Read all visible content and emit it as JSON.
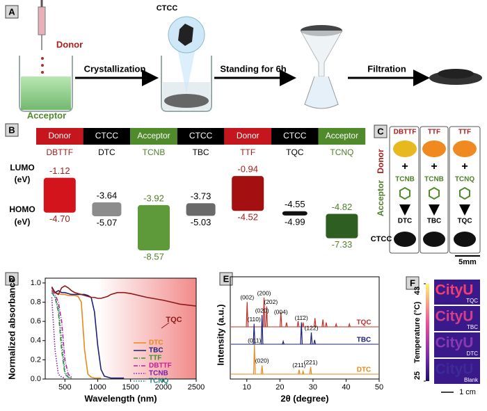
{
  "panel_a": {
    "label": "A",
    "donor": "Donor",
    "acceptor": "Acceptor",
    "product": "CTCC",
    "steps": [
      "Crystallization",
      "Standing for 6h",
      "Filtration"
    ]
  },
  "panel_b": {
    "label": "B",
    "roles": [
      "Donor",
      "CTCC",
      "Acceptor",
      "CTCC",
      "Donor",
      "CTCC",
      "Acceptor"
    ],
    "header_colors": [
      "#c4161c",
      "#000000",
      "#4f8a2b",
      "#000000",
      "#c4161c",
      "#000000",
      "#4f8a2b"
    ],
    "compounds": [
      "DBTTF",
      "DTC",
      "TCNB",
      "TBC",
      "TTF",
      "TQC",
      "TCNQ"
    ],
    "label_colors": [
      "#a61b1b",
      "#000000",
      "#4f7f2a",
      "#000000",
      "#a61b1b",
      "#000000",
      "#4f7f2a"
    ],
    "colors": [
      "#d3141c",
      "#8c8c8c",
      "#5f9a3a",
      "#6a6a6a",
      "#a3100f",
      "#111111",
      "#2f5e22"
    ],
    "lumo_axis": "LUMO",
    "homo_axis": "HOMO",
    "unit": "(eV)",
    "lumo": {
      "values": [
        -1.12,
        -3.64,
        -3.92,
        -3.73,
        -0.94,
        -4.55,
        -4.82
      ],
      "value_labels": [
        "-1.12",
        "-3.64",
        "-3.92",
        "-3.73",
        "-0.94",
        "-4.55",
        "-4.82"
      ]
    },
    "homo": {
      "values": [
        -4.7,
        -5.07,
        -8.57,
        -5.03,
        -4.52,
        -4.99,
        -7.33
      ],
      "value_labels": [
        "-4.70",
        "-5.07",
        "-8.57",
        "-5.03",
        "-4.52",
        "-4.99",
        "-7.33"
      ]
    }
  },
  "panel_c": {
    "label": "C",
    "rows": [
      "Donor",
      "Acceptor",
      "CTCC"
    ],
    "donors": [
      "DBTTF",
      "TTF",
      "TTF"
    ],
    "acceptors": [
      "TCNB",
      "TCNB",
      "TCNQ"
    ],
    "products": [
      "DTC",
      "TBC",
      "TQC"
    ],
    "scale": "5mm"
  },
  "chart_data": [
    {
      "label": "D",
      "type": "line",
      "xlabel": "Wavelength (nm)",
      "ylabel": "Normalized absorbance",
      "x": [
        300,
        350,
        400,
        450,
        500,
        550,
        600,
        650,
        700,
        750,
        800,
        850,
        900,
        950,
        1000,
        1050,
        1100,
        1150,
        1200,
        1300,
        1400,
        1500,
        1750,
        2000,
        2250,
        2500
      ],
      "xlim": [
        200,
        2500
      ],
      "xticks": [
        500,
        1000,
        1500,
        2000,
        2500
      ],
      "ylim": [
        0,
        1.05
      ],
      "yticks": [
        {
          "value": 0,
          "label": "0.0"
        },
        {
          "value": 0.2,
          "label": "0.2"
        },
        {
          "value": 0.4,
          "label": "0.4"
        },
        {
          "value": 0.6,
          "label": "0.6"
        },
        {
          "value": 0.8,
          "label": "0.8"
        },
        {
          "value": 1,
          "label": "1.0"
        }
      ],
      "series": [
        {
          "name": "DTC",
          "color": "#e8891a",
          "dash": "solid",
          "values": [
            0.93,
            0.9,
            0.89,
            0.88,
            0.88,
            0.87,
            0.87,
            0.87,
            0.86,
            0.8,
            0.3,
            0.05,
            0.02,
            0.01,
            0.01,
            0.01,
            null,
            null,
            null,
            null,
            null,
            null,
            null,
            null,
            null,
            null
          ]
        },
        {
          "name": "TBC",
          "color": "#1c1f7a",
          "dash": "solid",
          "values": [
            0.95,
            0.9,
            0.92,
            0.9,
            0.9,
            0.89,
            0.88,
            0.88,
            0.88,
            0.88,
            0.88,
            0.87,
            0.85,
            0.7,
            0.35,
            0.1,
            0.03,
            0.02,
            0.01,
            0.01,
            0.01,
            null,
            null,
            null,
            null,
            null
          ]
        },
        {
          "name": "TTF",
          "color": "#3f8f2f",
          "dash": "dashdot",
          "values": [
            0.9,
            0.85,
            0.7,
            0.3,
            0.05,
            0.02,
            0.01,
            null,
            null,
            null,
            null,
            null,
            null,
            null,
            null,
            null,
            null,
            null,
            null,
            null,
            null,
            null,
            null,
            null,
            null,
            null
          ]
        },
        {
          "name": "DBTTF",
          "color": "#c0209a",
          "dash": "dashdot",
          "values": [
            0.92,
            0.88,
            0.8,
            0.6,
            0.2,
            0.05,
            0.02,
            null,
            null,
            null,
            null,
            null,
            null,
            null,
            null,
            null,
            null,
            null,
            null,
            null,
            null,
            null,
            null,
            null,
            null,
            null
          ]
        },
        {
          "name": "TCNB",
          "color": "#7a1fb0",
          "dash": "dotted",
          "values": [
            0.85,
            0.3,
            0.05,
            0.02,
            0.01,
            null,
            null,
            null,
            null,
            null,
            null,
            null,
            null,
            null,
            null,
            null,
            null,
            null,
            null,
            null,
            null,
            null,
            null,
            null,
            null,
            null
          ]
        },
        {
          "name": "TCNQ",
          "color": "#1f7f7f",
          "dash": "dotted",
          "values": [
            0.9,
            0.85,
            0.75,
            0.4,
            0.08,
            0.02,
            0.01,
            null,
            null,
            null,
            null,
            null,
            null,
            null,
            null,
            null,
            null,
            null,
            null,
            null,
            null,
            null,
            null,
            null,
            null,
            null
          ]
        },
        {
          "name": "TQC",
          "color": "#8b1a1a",
          "dash": "solid",
          "in_legend": false,
          "values": [
            0.96,
            0.9,
            0.88,
            0.95,
            0.97,
            0.95,
            0.92,
            0.9,
            0.89,
            0.88,
            0.87,
            0.86,
            0.85,
            0.85,
            0.84,
            0.84,
            0.85,
            0.86,
            0.88,
            0.9,
            0.9,
            0.89,
            0.85,
            0.82,
            0.78,
            0.76
          ]
        }
      ]
    },
    {
      "label": "E",
      "type": "xrd",
      "xlabel": "2θ (degree)",
      "ylabel": "Intensity (a.u.)",
      "xlim": [
        5,
        50
      ],
      "xticks": [
        10,
        20,
        30,
        40,
        50
      ],
      "series": [
        {
          "name": "TQC",
          "color": "#c0302a",
          "x": [
            10.1,
            15.2,
            16.0,
            20.3,
            22.0,
            25.5,
            27.0,
            30.6,
            33.0,
            34.0,
            37.0,
            41.0
          ],
          "values": [
            0.85,
            1.0,
            0.7,
            0.5,
            0.15,
            0.2,
            0.15,
            0.3,
            0.25,
            0.15,
            0.1,
            0.1
          ],
          "peak_labels": [
            "(002)",
            "(200)",
            "(202)",
            "(004)",
            null,
            null,
            null,
            null,
            null,
            null,
            null,
            null
          ]
        },
        {
          "name": "TBC",
          "color": "#1c1f7a",
          "x": [
            12.2,
            14.6,
            21.0,
            26.5,
            29.5,
            30.5
          ],
          "values": [
            0.7,
            1.0,
            0.1,
            0.75,
            0.4,
            0.15
          ],
          "peak_labels": [
            "(110)",
            "(020)",
            null,
            "(11̄2)",
            "(122)",
            null
          ]
        },
        {
          "name": "DTC",
          "color": "#e8891a",
          "x": [
            12.3,
            14.6,
            25.8,
            27.0,
            29.3
          ],
          "values": [
            1.0,
            0.3,
            0.15,
            0.1,
            0.25
          ],
          "peak_labels": [
            "(011)",
            "(020)",
            "(211)",
            null,
            "(221)"
          ]
        }
      ]
    }
  ],
  "panel_f": {
    "label": "F",
    "word": "CityU",
    "samples": [
      "TQC",
      "TBC",
      "DTC",
      "Blank"
    ],
    "colorbar_label": "Temperature (°C)",
    "ylim": [
      25,
      43
    ],
    "yticks": [
      25,
      43
    ],
    "scale": "1 cm"
  }
}
